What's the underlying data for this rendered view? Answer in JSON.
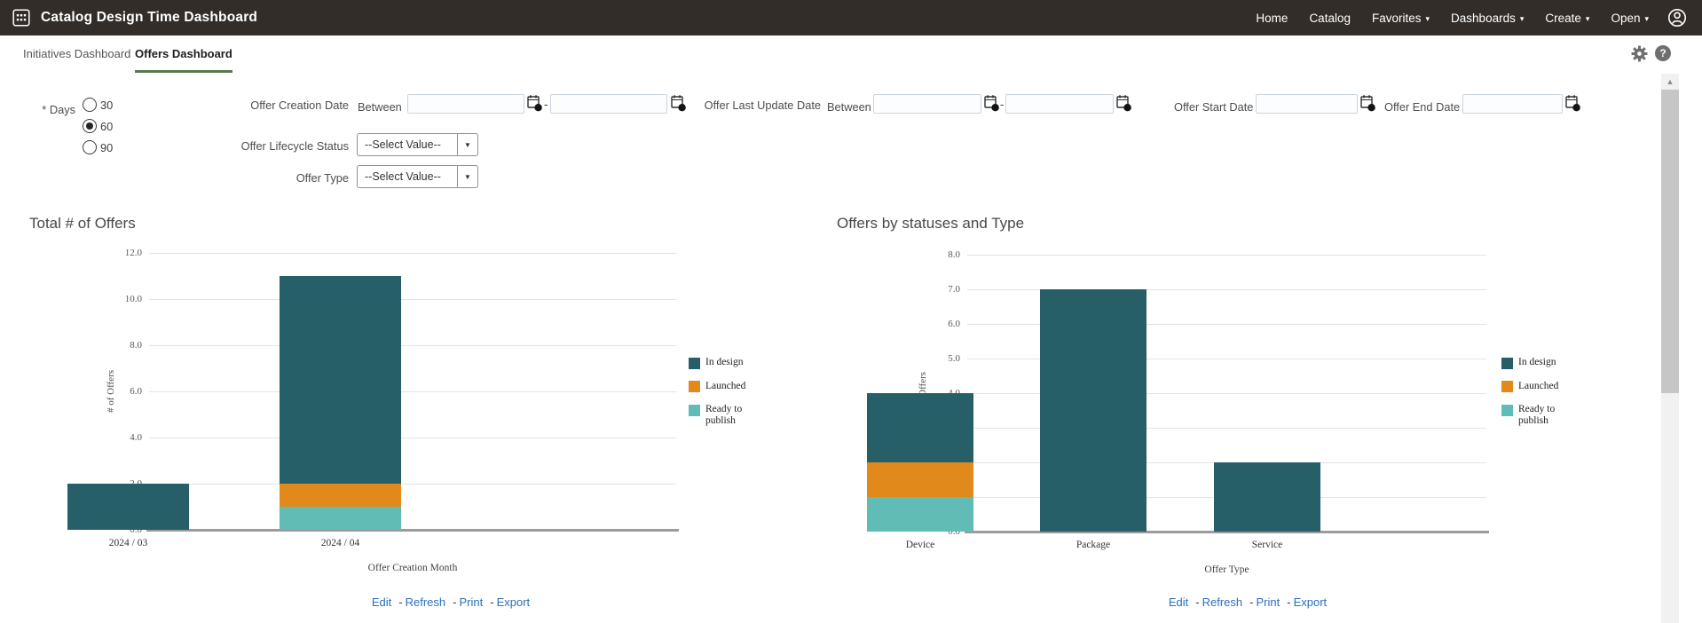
{
  "topbar": {
    "title": "Catalog Design Time Dashboard",
    "nav": [
      {
        "label": "Home",
        "dropdown": false
      },
      {
        "label": "Catalog",
        "dropdown": false
      },
      {
        "label": "Favorites",
        "dropdown": true
      },
      {
        "label": "Dashboards",
        "dropdown": true
      },
      {
        "label": "Create",
        "dropdown": true
      },
      {
        "label": "Open",
        "dropdown": true
      }
    ]
  },
  "tabs": {
    "initiatives": "Initiatives Dashboard",
    "offers": "Offers Dashboard",
    "active": "Offers Dashboard"
  },
  "icons": {
    "caret_down": "▾",
    "select_arrow": "▼",
    "help_glyph": "?",
    "scroll_up": "▲"
  },
  "filters": {
    "days": {
      "label": "* Days",
      "options": [
        "30",
        "60",
        "90"
      ],
      "selected": "60"
    },
    "offer_creation_date": {
      "label": "Offer Creation Date",
      "between": "Between",
      "from": "",
      "to": "",
      "separator": "-"
    },
    "offer_last_update_date": {
      "label": "Offer Last Update Date",
      "between": "Between",
      "from": "",
      "to": "",
      "separator": "-"
    },
    "offer_start_date": {
      "label": "Offer Start Date",
      "value": ""
    },
    "offer_end_date": {
      "label": "Offer End Date",
      "value": ""
    },
    "offer_lifecycle_status": {
      "label": "Offer Lifecycle Status",
      "value": "--Select Value--"
    },
    "offer_type": {
      "label": "Offer Type",
      "value": "--Select Value--"
    }
  },
  "colors": {
    "in_design": "#275f69",
    "launched": "#e1891b",
    "ready_to_publish": "#61bcb6",
    "tab_accent": "#56784e",
    "link": "#2b6fbd"
  },
  "chart_data": [
    {
      "type": "bar",
      "stacked": true,
      "title": "Total # of Offers",
      "xlabel": "Offer Creation Month",
      "ylabel": "# of Offers",
      "ylim": [
        0,
        12
      ],
      "ytick_step": 2,
      "grid": true,
      "legend_position": "right",
      "categories": [
        "2024 / 03",
        "2024 / 04"
      ],
      "series": [
        {
          "name": "In design",
          "color_key": "in_design",
          "values": [
            2,
            9
          ]
        },
        {
          "name": "Launched",
          "color_key": "launched",
          "values": [
            0,
            1
          ]
        },
        {
          "name": "Ready to publish",
          "color_key": "ready_to_publish",
          "values": [
            0,
            1
          ]
        }
      ],
      "links": [
        "Edit",
        "Refresh",
        "Print",
        "Export"
      ],
      "links_separator": "-"
    },
    {
      "type": "bar",
      "stacked": true,
      "title": "Offers by statuses and Type",
      "xlabel": "Offer Type",
      "ylabel": "# of Offers",
      "ylim": [
        0,
        8
      ],
      "ytick_step": 1,
      "grid": true,
      "legend_position": "right",
      "categories": [
        "Device",
        "Package",
        "Service"
      ],
      "series": [
        {
          "name": "In design",
          "color_key": "in_design",
          "values": [
            2,
            7,
            2
          ]
        },
        {
          "name": "Launched",
          "color_key": "launched",
          "values": [
            1,
            0,
            0
          ]
        },
        {
          "name": "Ready to publish",
          "color_key": "ready_to_publish",
          "values": [
            1,
            0,
            0
          ]
        }
      ],
      "links": [
        "Edit",
        "Refresh",
        "Print",
        "Export"
      ],
      "links_separator": "-"
    }
  ]
}
